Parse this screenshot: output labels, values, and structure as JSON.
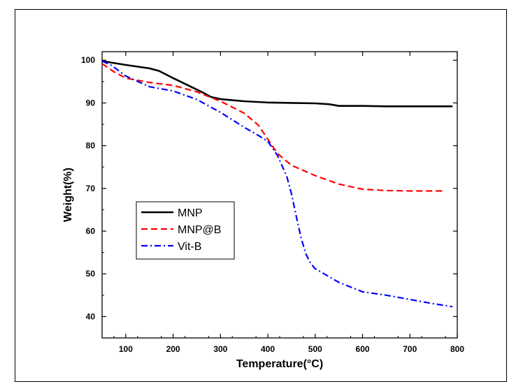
{
  "chart_data": {
    "type": "line",
    "title": "",
    "xlabel": "Temperature(°C)",
    "ylabel": "Weight(%)",
    "xlim": [
      50,
      800
    ],
    "ylim": [
      35,
      102
    ],
    "xticks": [
      100,
      200,
      300,
      400,
      500,
      600,
      700,
      800
    ],
    "yticks": [
      40,
      50,
      60,
      70,
      80,
      90,
      100
    ],
    "grid": false,
    "legend": "left-middle",
    "series": [
      {
        "name": "MNP",
        "color": "#000000",
        "dash": "solid",
        "x": [
          50,
          100,
          150,
          170,
          200,
          230,
          260,
          280,
          300,
          350,
          400,
          450,
          500,
          530,
          550,
          600,
          650,
          700,
          750,
          790
        ],
        "y": [
          99.8,
          98.9,
          98.1,
          97.5,
          95.8,
          94.2,
          92.6,
          91.4,
          90.9,
          90.4,
          90.1,
          90.0,
          89.9,
          89.7,
          89.3,
          89.3,
          89.2,
          89.2,
          89.2,
          89.2
        ]
      },
      {
        "name": "MNP@B",
        "color": "#ff0000",
        "dash": "dashed",
        "x": [
          50,
          75,
          100,
          150,
          200,
          250,
          300,
          350,
          380,
          400,
          420,
          450,
          500,
          550,
          600,
          650,
          700,
          770
        ],
        "y": [
          99.2,
          97.3,
          95.8,
          94.8,
          94.1,
          92.6,
          90.4,
          87.6,
          84.8,
          81.5,
          78.2,
          75.4,
          73.0,
          71.0,
          69.8,
          69.5,
          69.4,
          69.4
        ]
      },
      {
        "name": "Vit-B",
        "color": "#0000ff",
        "dash": "dashdot",
        "x": [
          50,
          70,
          100,
          150,
          200,
          250,
          300,
          350,
          380,
          400,
          420,
          440,
          450,
          460,
          470,
          480,
          490,
          500,
          550,
          600,
          650,
          700,
          750,
          790
        ],
        "y": [
          99.8,
          98.8,
          96.3,
          93.8,
          92.8,
          90.8,
          87.8,
          84.3,
          82.4,
          81.0,
          77.8,
          72.8,
          68.7,
          63.5,
          58.5,
          54.7,
          52.5,
          51.2,
          48.0,
          45.8,
          45.0,
          44.0,
          43.0,
          42.3
        ]
      }
    ]
  }
}
